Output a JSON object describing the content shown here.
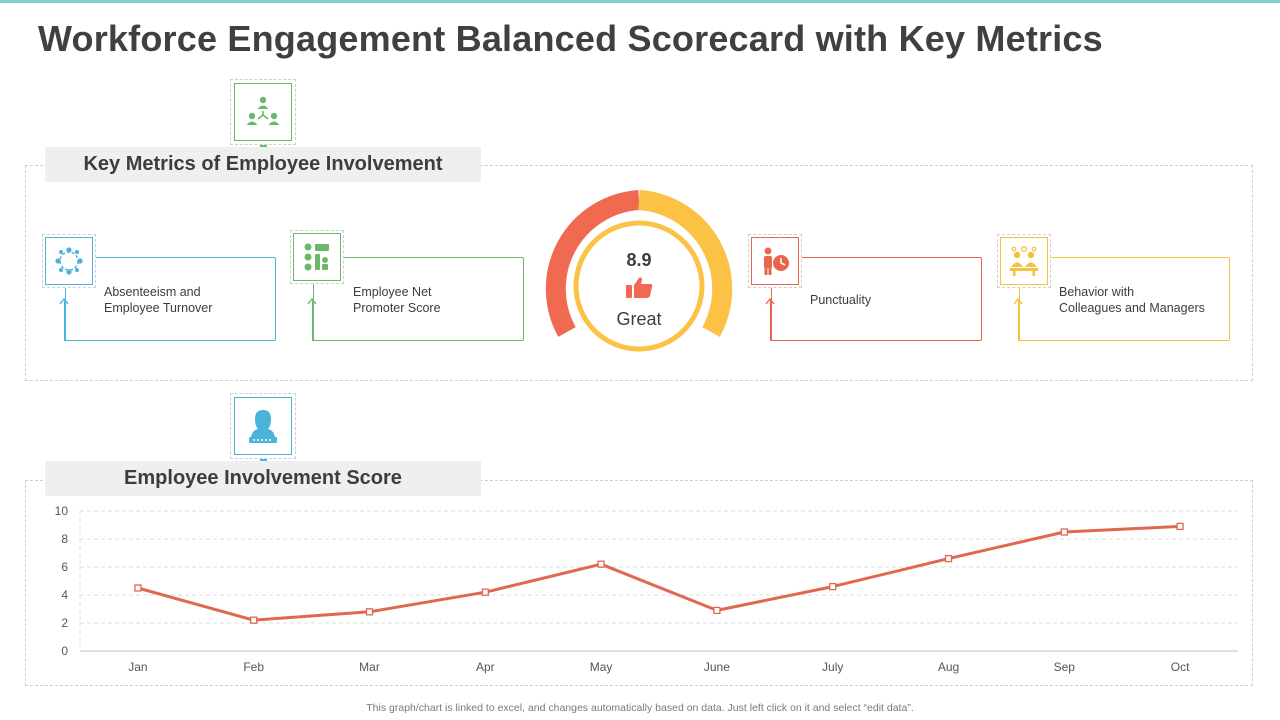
{
  "title": "Workforce Engagement Balanced Scorecard with Key Metrics",
  "sections": {
    "metrics_label": "Key Metrics of Employee Involvement",
    "score_label": "Employee Involvement Score"
  },
  "metrics": [
    {
      "label": "Absenteeism and\nEmployee Turnover",
      "icon": "team-circle-icon",
      "color": "#4ab3d9"
    },
    {
      "label": "Employee Net\nPromoter Score",
      "icon": "feedback-icon",
      "color": "#6ab86a"
    },
    {
      "label": "Punctuality",
      "icon": "person-clock-icon",
      "color": "#e9654b"
    },
    {
      "label": "Behavior with\nColleagues and Managers",
      "icon": "colleagues-icon",
      "color": "#f3c13a"
    }
  ],
  "gauge": {
    "score": "8.9",
    "rating": "Great",
    "icon": "thumbs-up-icon",
    "colors": {
      "left": "#ef6a50",
      "right": "#fbc246",
      "ring": "#fbc246"
    }
  },
  "colors": {
    "accent_green": "#6ab86a",
    "accent_blue": "#4ab3d9",
    "line": "#e06850"
  },
  "chart_data": {
    "type": "line",
    "categories": [
      "Jan",
      "Feb",
      "Mar",
      "Apr",
      "May",
      "June",
      "July",
      "Aug",
      "Sep",
      "Oct"
    ],
    "series": [
      {
        "values": [
          4.5,
          2.2,
          2.8,
          4.2,
          6.2,
          2.9,
          4.6,
          6.6,
          8.5,
          8.9
        ]
      }
    ],
    "ylim": [
      0,
      10
    ],
    "yticks": [
      0,
      2,
      4,
      6,
      8,
      10
    ],
    "grid": true,
    "title": "",
    "xlabel": "",
    "ylabel": ""
  },
  "footer": "This graph/chart is linked to excel, and changes automatically based on data. Just left click on it and select “edit data”."
}
